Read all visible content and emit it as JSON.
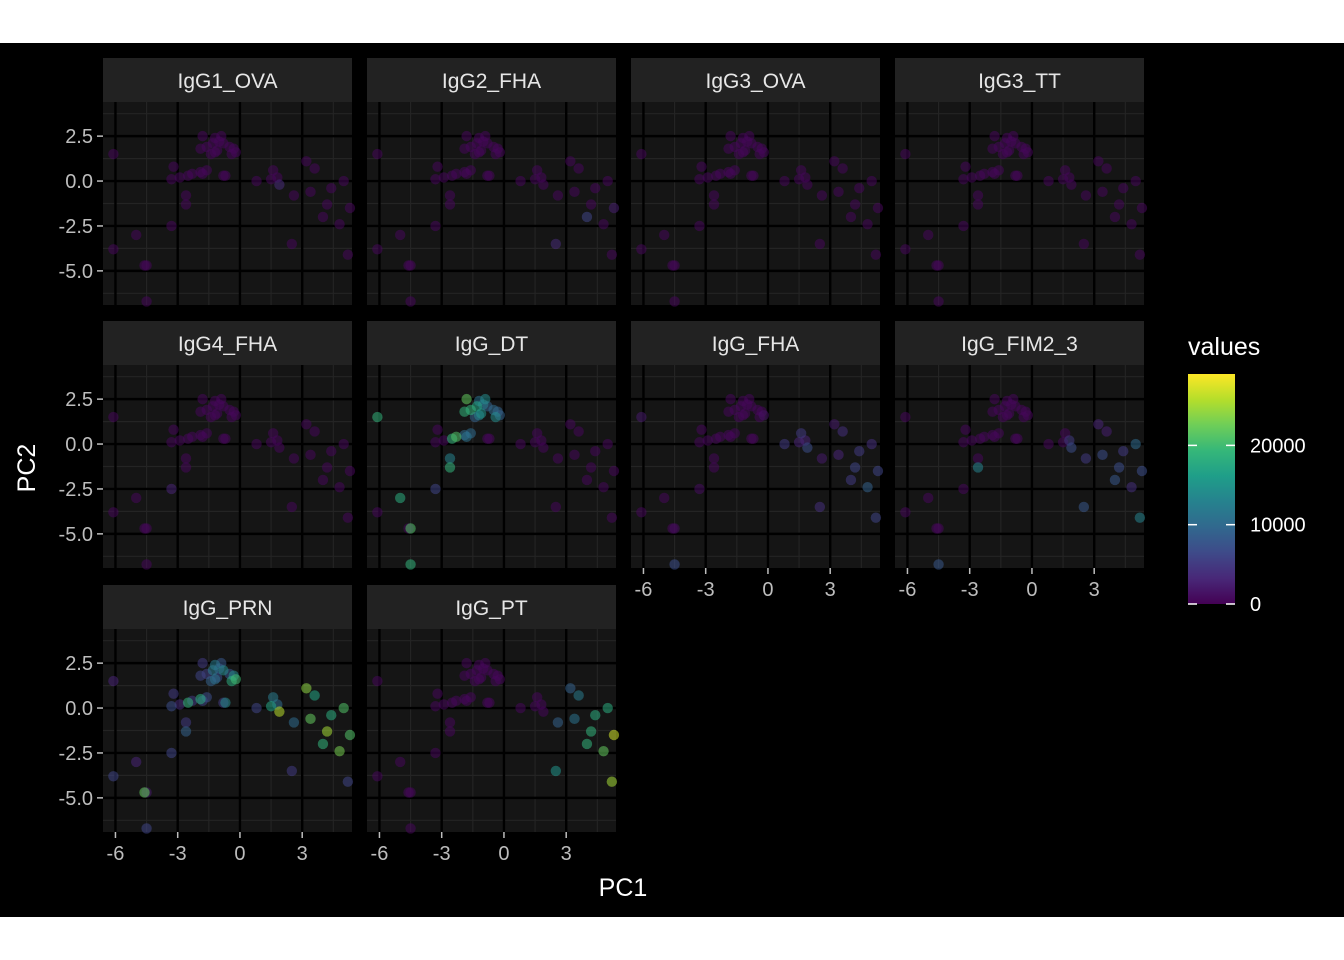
{
  "chart_data": {
    "type": "scatter",
    "facet_layout": "wrap-4-columns",
    "xlabel": "PC1",
    "ylabel": "PC2",
    "xlim": [
      -6.6,
      5.4
    ],
    "ylim": [
      -6.9,
      4.4
    ],
    "x_ticks": [
      -6,
      -3,
      0,
      3
    ],
    "x_tick_labels": [
      "-6",
      "-3",
      "0",
      "3"
    ],
    "y_ticks": [
      2.5,
      0.0,
      -2.5,
      -5.0
    ],
    "y_tick_labels": [
      "2.5",
      "0.0",
      "-2.5",
      "-5.0"
    ],
    "grid": true,
    "theme": "dark",
    "color_scale": {
      "title": "values",
      "palette": "viridis",
      "limits": [
        0,
        29000
      ],
      "breaks": [
        0,
        10000,
        20000
      ],
      "break_labels": [
        "0",
        "10000",
        "20000"
      ],
      "colors": [
        "#440154",
        "#482878",
        "#3e4a89",
        "#31688e",
        "#26828e",
        "#1f9e89",
        "#35b779",
        "#6ece58",
        "#b5de2b",
        "#fde725"
      ],
      "legend_position": "right"
    },
    "points": {
      "PC1": [
        -6.1,
        -6.1,
        -5.0,
        -4.6,
        -4.5,
        -4.5,
        -3.3,
        -3.3,
        -3.2,
        -2.9,
        -2.6,
        -2.6,
        -2.5,
        -2.3,
        -1.9,
        -1.9,
        -1.8,
        -1.8,
        -1.6,
        -1.6,
        -1.4,
        -1.3,
        -1.2,
        -1.2,
        -1.1,
        -1.0,
        -0.9,
        -0.8,
        -0.8,
        -0.7,
        -0.5,
        -0.4,
        -0.3,
        -0.2,
        0.8,
        1.5,
        1.6,
        1.8,
        1.9,
        2.5,
        2.6,
        3.2,
        3.4,
        3.6,
        4.0,
        4.2,
        4.4,
        4.8,
        5.0,
        5.2,
        5.3
      ],
      "PC2": [
        -3.8,
        1.5,
        -3.0,
        -4.7,
        -6.7,
        -4.7,
        -2.5,
        0.1,
        0.8,
        0.2,
        -1.3,
        -0.8,
        0.3,
        0.4,
        1.8,
        0.5,
        2.5,
        0.4,
        0.6,
        1.9,
        1.5,
        2.1,
        1.6,
        2.4,
        1.7,
        2.2,
        2.5,
        0.3,
        2.1,
        0.3,
        1.9,
        1.5,
        1.8,
        1.6,
        0.0,
        0.1,
        0.6,
        0.2,
        -0.2,
        -3.5,
        -0.8,
        1.1,
        -0.6,
        0.7,
        -2.0,
        -1.3,
        -0.4,
        -2.4,
        0.0,
        -4.1,
        -1.5
      ]
    },
    "facets": [
      {
        "name": "IgG1_OVA",
        "values": [
          500,
          500,
          500,
          500,
          500,
          500,
          500,
          500,
          500,
          500,
          500,
          500,
          500,
          500,
          500,
          500,
          500,
          500,
          500,
          500,
          500,
          500,
          500,
          500,
          500,
          500,
          500,
          500,
          500,
          500,
          500,
          500,
          500,
          500,
          500,
          500,
          500,
          500,
          3500,
          500,
          500,
          500,
          500,
          500,
          500,
          500,
          500,
          500,
          500,
          500,
          500
        ]
      },
      {
        "name": "IgG2_FHA",
        "values": [
          500,
          500,
          500,
          500,
          500,
          500,
          500,
          500,
          500,
          500,
          500,
          500,
          500,
          500,
          500,
          500,
          500,
          500,
          500,
          500,
          500,
          500,
          500,
          500,
          500,
          500,
          500,
          500,
          500,
          500,
          500,
          500,
          500,
          500,
          500,
          500,
          500,
          500,
          500,
          3500,
          500,
          500,
          500,
          500,
          6000,
          500,
          500,
          500,
          500,
          500,
          2500
        ]
      },
      {
        "name": "IgG3_OVA",
        "values": [
          500,
          500,
          500,
          500,
          500,
          500,
          500,
          500,
          500,
          500,
          500,
          500,
          500,
          500,
          500,
          500,
          500,
          500,
          500,
          500,
          500,
          500,
          500,
          500,
          500,
          500,
          500,
          500,
          500,
          500,
          500,
          500,
          500,
          500,
          500,
          500,
          500,
          500,
          500,
          500,
          500,
          500,
          500,
          500,
          500,
          500,
          500,
          500,
          500,
          500,
          500
        ]
      },
      {
        "name": "IgG3_TT",
        "values": [
          500,
          500,
          500,
          500,
          500,
          500,
          500,
          500,
          500,
          500,
          500,
          500,
          500,
          500,
          500,
          500,
          500,
          500,
          500,
          500,
          500,
          500,
          500,
          500,
          500,
          500,
          500,
          500,
          500,
          500,
          500,
          500,
          500,
          500,
          500,
          500,
          500,
          500,
          500,
          500,
          500,
          500,
          500,
          500,
          500,
          500,
          500,
          500,
          500,
          500,
          500
        ]
      },
      {
        "name": "IgG4_FHA",
        "values": [
          500,
          500,
          500,
          500,
          500,
          500,
          3000,
          500,
          500,
          500,
          500,
          500,
          500,
          500,
          500,
          500,
          500,
          500,
          500,
          500,
          500,
          500,
          500,
          500,
          500,
          500,
          500,
          500,
          500,
          500,
          500,
          500,
          500,
          500,
          500,
          500,
          500,
          500,
          500,
          500,
          500,
          500,
          500,
          500,
          500,
          500,
          500,
          500,
          500,
          500,
          500
        ]
      },
      {
        "name": "IgG_DT",
        "values": [
          500,
          19000,
          18000,
          500,
          19000,
          21000,
          6000,
          500,
          500,
          500,
          19000,
          13000,
          19000,
          21000,
          19000,
          10000,
          22000,
          11000,
          10000,
          19000,
          9000,
          17000,
          13000,
          11000,
          15000,
          12000,
          14000,
          500,
          9000,
          500,
          10000,
          14000,
          9000,
          9000,
          500,
          500,
          500,
          500,
          500,
          500,
          500,
          500,
          500,
          500,
          500,
          500,
          500,
          500,
          500,
          500,
          500
        ]
      },
      {
        "name": "IgG_FHA",
        "values": [
          500,
          2000,
          500,
          500,
          7000,
          1000,
          1000,
          500,
          500,
          500,
          500,
          500,
          500,
          500,
          500,
          500,
          500,
          500,
          500,
          500,
          500,
          500,
          500,
          500,
          500,
          500,
          500,
          500,
          500,
          500,
          500,
          500,
          500,
          1500,
          5000,
          3000,
          5000,
          3000,
          7000,
          4000,
          2000,
          2000,
          3000,
          4000,
          5000,
          6000,
          5000,
          9000,
          4000,
          6000,
          6000
        ]
      },
      {
        "name": "IgG_FIM2_3",
        "values": [
          500,
          500,
          500,
          500,
          8000,
          500,
          500,
          500,
          500,
          500,
          13000,
          500,
          500,
          500,
          500,
          500,
          500,
          500,
          500,
          500,
          500,
          500,
          500,
          500,
          500,
          500,
          500,
          500,
          500,
          500,
          500,
          500,
          500,
          500,
          500,
          500,
          500,
          5000,
          7000,
          8000,
          5000,
          3000,
          7000,
          2500,
          8000,
          7000,
          5000,
          4000,
          10000,
          13000,
          7000
        ]
      },
      {
        "name": "IgG_PRN",
        "values": [
          6000,
          3000,
          3000,
          22000,
          6000,
          2000,
          6000,
          7000,
          5000,
          3500,
          9000,
          5000,
          19000,
          5000,
          6000,
          18000,
          5000,
          6000,
          7000,
          5500,
          9000,
          12000,
          11000,
          12000,
          7000,
          7500,
          8000,
          5000,
          14000,
          14000,
          7500,
          18000,
          14000,
          20000,
          6000,
          17000,
          12000,
          10000,
          26000,
          5000,
          10000,
          24000,
          22000,
          17000,
          19000,
          25000,
          18000,
          23000,
          21000,
          6000,
          21000
        ]
      },
      {
        "name": "IgG_PT",
        "values": [
          500,
          500,
          500,
          500,
          500,
          500,
          500,
          500,
          500,
          500,
          500,
          500,
          500,
          500,
          500,
          500,
          500,
          500,
          500,
          500,
          500,
          500,
          500,
          500,
          500,
          500,
          500,
          500,
          500,
          500,
          500,
          500,
          500,
          500,
          500,
          500,
          500,
          500,
          500,
          15000,
          9000,
          9000,
          11000,
          12000,
          19000,
          19000,
          18000,
          22000,
          18000,
          25000,
          27000
        ]
      }
    ]
  }
}
